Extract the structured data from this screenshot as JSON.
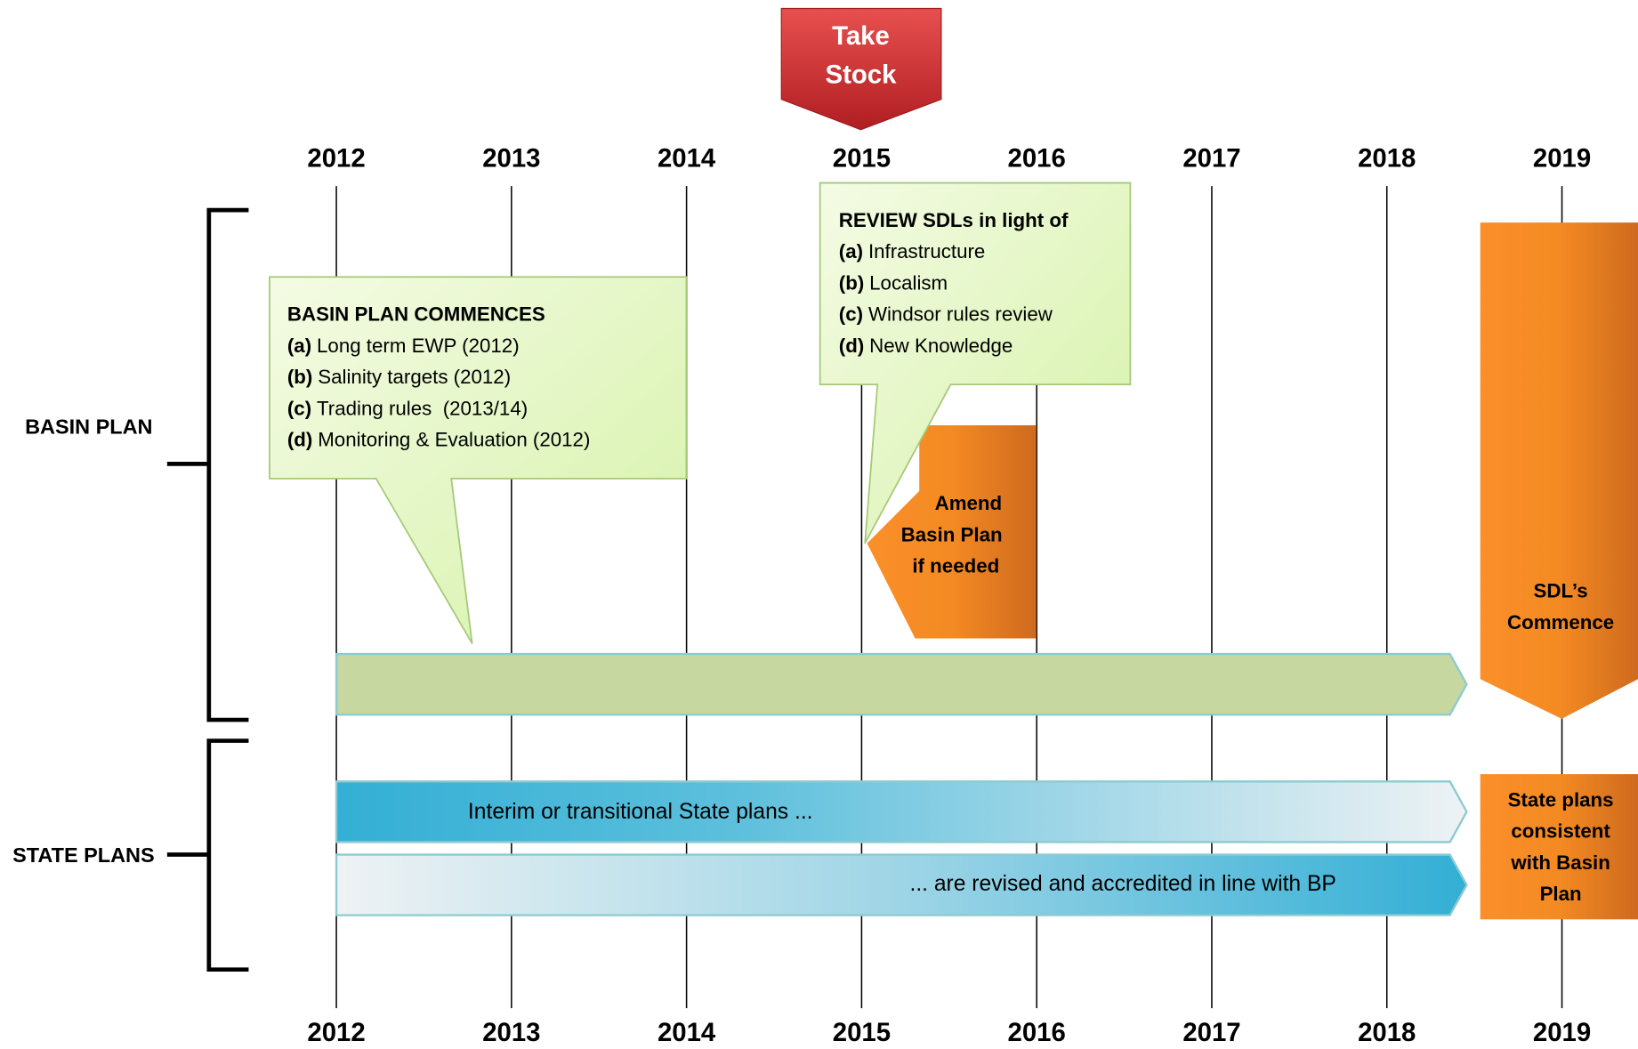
{
  "years": [
    "2012",
    "2013",
    "2014",
    "2015",
    "2016",
    "2017",
    "2018",
    "2019"
  ],
  "take_stock": [
    "Take",
    "Stock"
  ],
  "groups": [
    {
      "label": "BASIN PLAN"
    },
    {
      "label": "STATE PLANS"
    }
  ],
  "basin_callout": {
    "title": "BASIN PLAN COMMENCES",
    "items": [
      {
        "marker": "(a)",
        "text": "Long term EWP (2012)"
      },
      {
        "marker": "(b)",
        "text": "Salinity targets (2012)"
      },
      {
        "marker": "(c)",
        "text": "Trading rules  (2013/14)"
      },
      {
        "marker": "(d)",
        "text": "Monitoring & Evaluation (2012)"
      }
    ]
  },
  "review_callout": {
    "title": "REVIEW SDLs in light of",
    "items": [
      {
        "marker": "(a)",
        "text": "Infrastructure"
      },
      {
        "marker": "(b)",
        "text": "Localism"
      },
      {
        "marker": "(c)",
        "text": "Windsor rules review"
      },
      {
        "marker": "(d)",
        "text": "New Knowledge"
      }
    ]
  },
  "amend": [
    "Amend",
    "Basin Plan",
    "if needed"
  ],
  "sdl": [
    "SDL’s",
    "Commence"
  ],
  "state_bars": [
    "Interim or transitional State plans ...",
    "... are revised and accredited in line with BP"
  ],
  "state_consistent": [
    "State plans",
    "consistent",
    "with Basin",
    "Plan"
  ]
}
